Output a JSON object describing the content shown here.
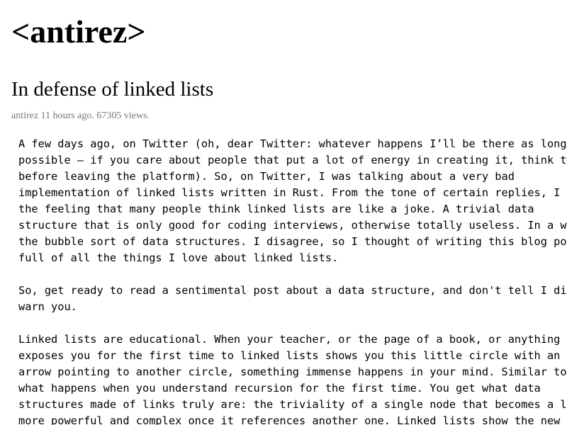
{
  "site": {
    "title": "<antirez>"
  },
  "post": {
    "title": "In defense of linked lists",
    "author": "antirez",
    "age": "11 hours ago",
    "views": "67305 views"
  },
  "body": {
    "paragraphs": [
      [
        "A few days ago, on Twitter (oh, dear Twitter: whatever happens I’ll be there as long as",
        "possible – if you care about people that put a lot of energy in creating it, think twice",
        "before leaving the platform). So, on Twitter, I was talking about a very bad",
        "implementation of linked lists written in Rust. From the tone of certain replies, I got",
        "the feeling that many people think linked lists are like a joke. A trivial data",
        "structure that is only good for coding interviews, otherwise totally useless. In a word,",
        "the bubble sort of data structures. I disagree, so I thought of writing this blog post",
        "full of all the things I love about linked lists."
      ],
      [
        "So, get ready to read a sentimental post about a data structure, and don't tell I didn't",
        "warn you."
      ],
      [
        "Linked lists are educational. When your teacher, or the page of a book, or anything that",
        "exposes you for the first time to linked lists shows you this little circle with an",
        "arrow pointing to another circle, something immense happens in your mind. Similar to",
        "what happens when you understand recursion for the first time. You get what data",
        "structures made of links truly are: the triviality of a single node that becomes a lot",
        "more powerful and complex once it references another one. Linked lists show the new"
      ]
    ]
  }
}
